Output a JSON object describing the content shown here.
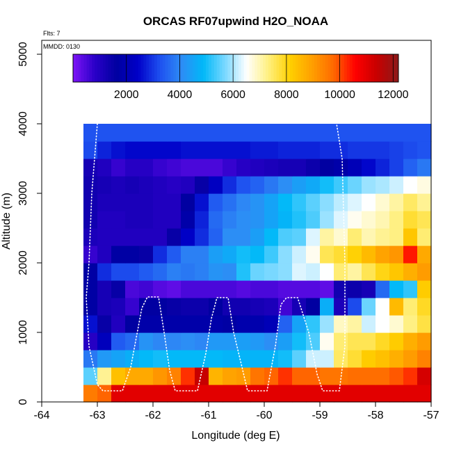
{
  "chart_data": {
    "type": "heatmap",
    "title": "ORCAS RF07upwind H2O_NOAA",
    "xlabel": "Longitude (deg E)",
    "ylabel": "Altitude (m)",
    "annotations": [
      "Flts: 7",
      "MMDD: 0130"
    ],
    "xlim": [
      -64,
      -57
    ],
    "ylim": [
      0,
      5200
    ],
    "x_ticks": [
      -64,
      -63,
      -62,
      -61,
      -60,
      -59,
      -58,
      -57
    ],
    "x_tick_labels": [
      "-64",
      "-63",
      "-62",
      "-61",
      "-60",
      "-59",
      "-58",
      "-57"
    ],
    "y_ticks": [
      0,
      1000,
      2000,
      3000,
      4000,
      5000
    ],
    "y_tick_labels": [
      "0",
      "1000",
      "2000",
      "3000",
      "4000",
      "5000"
    ],
    "colorbar": {
      "range": [
        0,
        12200
      ],
      "ticks": [
        2000,
        4000,
        6000,
        8000,
        10000,
        12000
      ],
      "tick_labels": [
        "2000",
        "4000",
        "6000",
        "8000",
        "10000",
        "12000"
      ],
      "colors": [
        "#7e14f7",
        "#2a00c8",
        "#0000a0",
        "#0000c8",
        "#1e50f0",
        "#2e8cf5",
        "#00b8f8",
        "#78d8ff",
        "#ffffff",
        "#fff080",
        "#ffd000",
        "#ffa000",
        "#ff6a00",
        "#ff0000",
        "#c80000",
        "#8b1a1a"
      ]
    },
    "grid": {
      "lon_start": -63.25,
      "lon_step": 0.25,
      "alt_start": 0,
      "alt_step": 250
    },
    "rows": [
      [
        9500,
        9800,
        11000,
        11000,
        11000,
        11000,
        11000,
        11000,
        11000,
        11000,
        11000,
        11000,
        11000,
        11000,
        11000,
        11000,
        11000,
        11000,
        11000,
        11000,
        11000,
        11000,
        11000,
        11000,
        11000
      ],
      [
        5500,
        7200,
        8400,
        8800,
        8800,
        9100,
        9400,
        10200,
        11400,
        8600,
        8900,
        9000,
        9600,
        9800,
        10200,
        9800,
        9800,
        9600,
        9600,
        9700,
        9700,
        9700,
        9900,
        10200,
        11200
      ],
      [
        3800,
        4300,
        4500,
        4700,
        4900,
        5000,
        4900,
        4900,
        4900,
        4900,
        4800,
        4800,
        4800,
        4800,
        5000,
        5500,
        6200,
        6200,
        7500,
        7800,
        8200,
        8400,
        8700,
        9000,
        9400
      ],
      [
        900,
        2200,
        3400,
        3600,
        4200,
        4000,
        4000,
        4100,
        4000,
        4300,
        4300,
        4400,
        4300,
        4100,
        4400,
        5000,
        5400,
        6600,
        7400,
        7600,
        7600,
        7900,
        8200,
        8700,
        9000
      ],
      [
        2600,
        1500,
        1000,
        1600,
        1800,
        1800,
        1800,
        1800,
        1800,
        1800,
        1700,
        1900,
        1900,
        2100,
        3500,
        4500,
        5200,
        5900,
        6900,
        7100,
        6200,
        6500,
        6800,
        7300,
        7700
      ],
      [
        1700,
        1200,
        1100,
        700,
        1600,
        1600,
        1500,
        1400,
        1400,
        1600,
        1300,
        1300,
        1200,
        1100,
        600,
        1200,
        1600,
        4700,
        1100,
        3200,
        5600,
        6500,
        8500,
        7400,
        7900
      ],
      [
        1700,
        1200,
        1500,
        500,
        600,
        400,
        300,
        500,
        500,
        500,
        500,
        400,
        500,
        500,
        400,
        400,
        400,
        300,
        1300,
        1400,
        1200,
        3600,
        4900,
        5200,
        8200
      ],
      [
        1700,
        2900,
        3200,
        3200,
        3400,
        3600,
        3900,
        3800,
        3900,
        4200,
        4100,
        5100,
        5600,
        5700,
        5800,
        6300,
        6200,
        6500,
        7400,
        7100,
        7600,
        8000,
        8300,
        8700,
        9000
      ],
      [
        700,
        1000,
        1700,
        1700,
        1500,
        2900,
        3400,
        3900,
        3900,
        4400,
        4600,
        5000,
        4900,
        5300,
        5800,
        6200,
        6600,
        7600,
        7800,
        8100,
        8500,
        8900,
        9100,
        10400,
        8800
      ],
      [
        1100,
        1000,
        1000,
        1000,
        1000,
        1000,
        1500,
        2400,
        2900,
        3500,
        4100,
        4100,
        4400,
        4900,
        5400,
        5500,
        6300,
        7100,
        6800,
        7400,
        7000,
        7200,
        7300,
        8300,
        7400
      ],
      [
        1300,
        1000,
        1000,
        1100,
        1100,
        1000,
        1000,
        1800,
        2800,
        3600,
        3900,
        4100,
        4200,
        4500,
        4800,
        5100,
        5400,
        5900,
        6300,
        6600,
        6800,
        7000,
        7300,
        7800,
        7600
      ],
      [
        1300,
        1100,
        1100,
        1100,
        1100,
        1000,
        1000,
        1600,
        2600,
        3400,
        3700,
        4000,
        4200,
        4500,
        4900,
        5200,
        5500,
        5800,
        6100,
        6300,
        6500,
        6800,
        7100,
        7500,
        7200
      ],
      [
        1300,
        1200,
        1100,
        1200,
        1100,
        1000,
        900,
        1000,
        1500,
        2300,
        2900,
        3300,
        3500,
        3800,
        4100,
        4400,
        4600,
        5000,
        5300,
        5600,
        5900,
        6000,
        6200,
        6500,
        6700
      ],
      [
        1200,
        1000,
        700,
        900,
        900,
        700,
        600,
        500,
        500,
        500,
        700,
        900,
        1000,
        1100,
        1200,
        1200,
        1400,
        1600,
        1800,
        2100,
        2500,
        2800,
        3100,
        3500,
        3800
      ],
      [
        3200,
        2800,
        2600,
        2500,
        2500,
        2500,
        2500,
        2600,
        2600,
        2600,
        2600,
        2600,
        2700,
        2700,
        2800,
        2800,
        2800,
        2900,
        2900,
        3000,
        3000,
        3000,
        3100,
        3200,
        3300
      ],
      [
        3300,
        3300,
        3300,
        3300,
        3300,
        3300,
        3300,
        3300,
        3300,
        3300,
        3300,
        3300,
        3300,
        3300,
        3300,
        3300,
        3300,
        3300,
        3300,
        3300,
        3300,
        3300,
        3300,
        3300,
        3300
      ]
    ]
  }
}
